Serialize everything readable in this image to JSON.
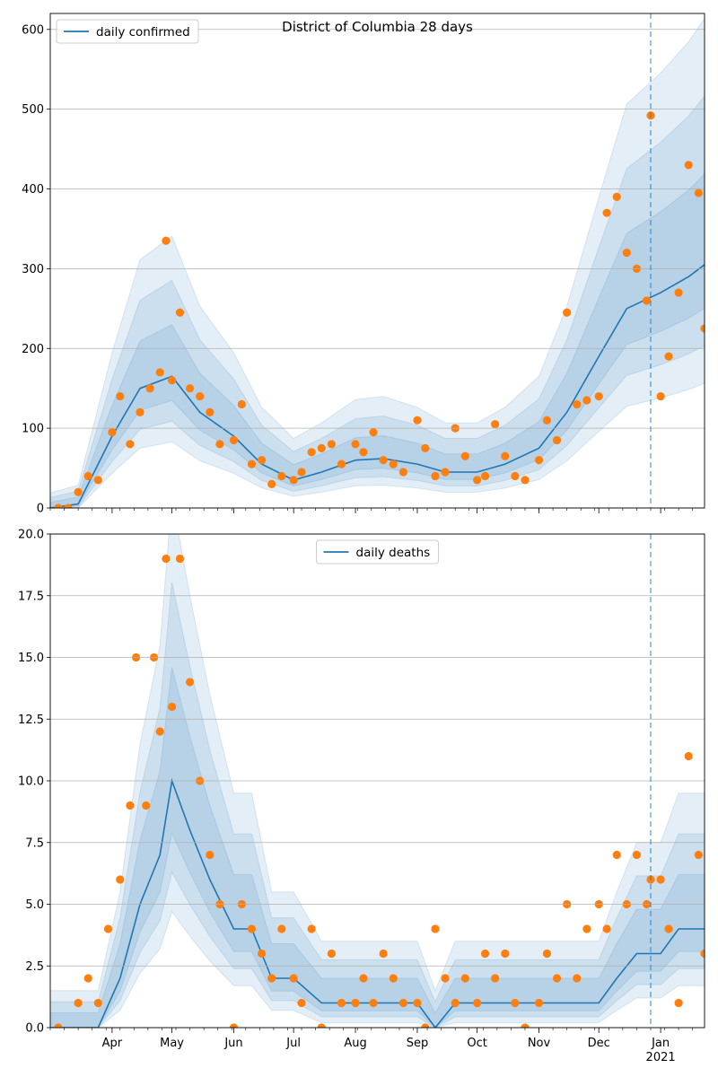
{
  "chart_data": [
    {
      "type": "line",
      "title": "District of Columbia 28 days",
      "ylim": [
        0,
        620
      ],
      "yticks": [
        0,
        100,
        200,
        300,
        400,
        500,
        600
      ],
      "x_range": [
        "2020-03-01",
        "2021-01-23"
      ],
      "x_tick_labels": [
        "Apr",
        "May",
        "Jun",
        "Jul",
        "Aug",
        "Sep",
        "Oct",
        "Nov",
        "Dec",
        "Jan"
      ],
      "year_label": "2021",
      "vline_date": "2020-12-27",
      "grid": "horizontal",
      "legend_placement": "top-left",
      "series": [
        {
          "name": "daily confirmed",
          "kind": "smoothed line",
          "x": [
            "2020-03-01",
            "2020-03-15",
            "2020-04-01",
            "2020-04-15",
            "2020-05-01",
            "2020-05-15",
            "2020-06-01",
            "2020-06-15",
            "2020-07-01",
            "2020-07-15",
            "2020-08-01",
            "2020-08-15",
            "2020-09-01",
            "2020-09-15",
            "2020-10-01",
            "2020-10-15",
            "2020-11-01",
            "2020-11-15",
            "2020-12-01",
            "2020-12-15",
            "2021-01-01",
            "2021-01-15",
            "2021-01-23"
          ],
          "y": [
            0,
            5,
            90,
            150,
            165,
            120,
            90,
            55,
            35,
            45,
            60,
            62,
            55,
            45,
            45,
            55,
            75,
            120,
            190,
            250,
            270,
            290,
            305
          ]
        },
        {
          "name": "",
          "kind": "observed points",
          "x": [
            "2020-03-05",
            "2020-03-10",
            "2020-03-15",
            "2020-03-20",
            "2020-03-25",
            "2020-04-01",
            "2020-04-05",
            "2020-04-10",
            "2020-04-15",
            "2020-04-20",
            "2020-04-25",
            "2020-04-28",
            "2020-05-01",
            "2020-05-05",
            "2020-05-10",
            "2020-05-15",
            "2020-05-20",
            "2020-05-25",
            "2020-06-01",
            "2020-06-05",
            "2020-06-10",
            "2020-06-15",
            "2020-06-20",
            "2020-06-25",
            "2020-07-01",
            "2020-07-05",
            "2020-07-10",
            "2020-07-15",
            "2020-07-20",
            "2020-07-25",
            "2020-08-01",
            "2020-08-05",
            "2020-08-10",
            "2020-08-15",
            "2020-08-20",
            "2020-08-25",
            "2020-09-01",
            "2020-09-05",
            "2020-09-10",
            "2020-09-15",
            "2020-09-20",
            "2020-09-25",
            "2020-10-01",
            "2020-10-05",
            "2020-10-10",
            "2020-10-15",
            "2020-10-20",
            "2020-10-25",
            "2020-11-01",
            "2020-11-05",
            "2020-11-10",
            "2020-11-15",
            "2020-11-20",
            "2020-11-25",
            "2020-12-01",
            "2020-12-05",
            "2020-12-10",
            "2020-12-15",
            "2020-12-20",
            "2020-12-25",
            "2020-12-27",
            "2021-01-01",
            "2021-01-05",
            "2021-01-10",
            "2021-01-15",
            "2021-01-20",
            "2021-01-23"
          ],
          "y": [
            0,
            0,
            20,
            40,
            35,
            95,
            140,
            80,
            120,
            150,
            170,
            335,
            160,
            245,
            150,
            140,
            120,
            80,
            85,
            130,
            55,
            60,
            30,
            40,
            35,
            45,
            70,
            75,
            80,
            55,
            80,
            70,
            95,
            60,
            55,
            45,
            110,
            75,
            40,
            45,
            100,
            65,
            35,
            40,
            105,
            65,
            40,
            35,
            60,
            110,
            85,
            245,
            130,
            135,
            140,
            370,
            390,
            320,
            300,
            260,
            492,
            140,
            190,
            270,
            430,
            395,
            225
          ]
        }
      ]
    },
    {
      "type": "line",
      "title": "",
      "ylim": [
        0,
        20
      ],
      "yticks": [
        0.0,
        2.5,
        5.0,
        7.5,
        10.0,
        12.5,
        15.0,
        17.5,
        20.0
      ],
      "x_range": [
        "2020-03-01",
        "2021-01-23"
      ],
      "x_tick_labels": [
        "Apr",
        "May",
        "Jun",
        "Jul",
        "Aug",
        "Sep",
        "Oct",
        "Nov",
        "Dec",
        "Jan"
      ],
      "year_label": "2021",
      "vline_date": "2020-12-27",
      "grid": "horizontal",
      "legend_placement": "top-center",
      "series": [
        {
          "name": "daily deaths",
          "kind": "smoothed line",
          "x": [
            "2020-03-01",
            "2020-03-25",
            "2020-04-05",
            "2020-04-15",
            "2020-04-25",
            "2020-05-01",
            "2020-05-10",
            "2020-05-20",
            "2020-06-01",
            "2020-06-10",
            "2020-06-20",
            "2020-07-01",
            "2020-07-15",
            "2020-08-01",
            "2020-08-15",
            "2020-09-01",
            "2020-09-10",
            "2020-09-20",
            "2020-10-01",
            "2020-10-15",
            "2020-11-01",
            "2020-11-15",
            "2020-12-01",
            "2020-12-10",
            "2020-12-20",
            "2021-01-01",
            "2021-01-10",
            "2021-01-23"
          ],
          "y": [
            0,
            0,
            2,
            5,
            7,
            10,
            8,
            6,
            4,
            4,
            2,
            2,
            1,
            1,
            1,
            1,
            0,
            1,
            1,
            1,
            1,
            1,
            1,
            2,
            3,
            3,
            4,
            4
          ]
        },
        {
          "name": "",
          "kind": "observed points",
          "x": [
            "2020-03-05",
            "2020-03-15",
            "2020-03-20",
            "2020-03-25",
            "2020-03-30",
            "2020-04-05",
            "2020-04-10",
            "2020-04-13",
            "2020-04-18",
            "2020-04-22",
            "2020-04-25",
            "2020-04-28",
            "2020-05-01",
            "2020-05-05",
            "2020-05-10",
            "2020-05-15",
            "2020-05-20",
            "2020-05-25",
            "2020-06-01",
            "2020-06-05",
            "2020-06-10",
            "2020-06-15",
            "2020-06-20",
            "2020-06-25",
            "2020-07-01",
            "2020-07-05",
            "2020-07-10",
            "2020-07-15",
            "2020-07-20",
            "2020-07-25",
            "2020-08-01",
            "2020-08-05",
            "2020-08-10",
            "2020-08-15",
            "2020-08-20",
            "2020-08-25",
            "2020-09-01",
            "2020-09-05",
            "2020-09-10",
            "2020-09-15",
            "2020-09-20",
            "2020-09-25",
            "2020-10-01",
            "2020-10-05",
            "2020-10-10",
            "2020-10-15",
            "2020-10-20",
            "2020-10-25",
            "2020-11-01",
            "2020-11-05",
            "2020-11-10",
            "2020-11-15",
            "2020-11-20",
            "2020-11-25",
            "2020-12-01",
            "2020-12-05",
            "2020-12-10",
            "2020-12-15",
            "2020-12-20",
            "2020-12-25",
            "2020-12-27",
            "2021-01-01",
            "2021-01-05",
            "2021-01-10",
            "2021-01-15",
            "2021-01-20",
            "2021-01-23"
          ],
          "y": [
            0,
            1,
            2,
            1,
            4,
            6,
            9,
            15,
            9,
            15,
            12,
            19,
            13,
            19,
            14,
            10,
            7,
            5,
            0,
            5,
            4,
            3,
            2,
            4,
            2,
            1,
            4,
            0,
            3,
            1,
            1,
            2,
            1,
            3,
            2,
            1,
            1,
            0,
            4,
            2,
            1,
            2,
            1,
            3,
            2,
            3,
            1,
            0,
            1,
            3,
            2,
            5,
            2,
            4,
            5,
            4,
            7,
            5,
            7,
            5,
            6,
            6,
            4,
            1,
            11,
            7,
            3
          ]
        }
      ]
    }
  ]
}
